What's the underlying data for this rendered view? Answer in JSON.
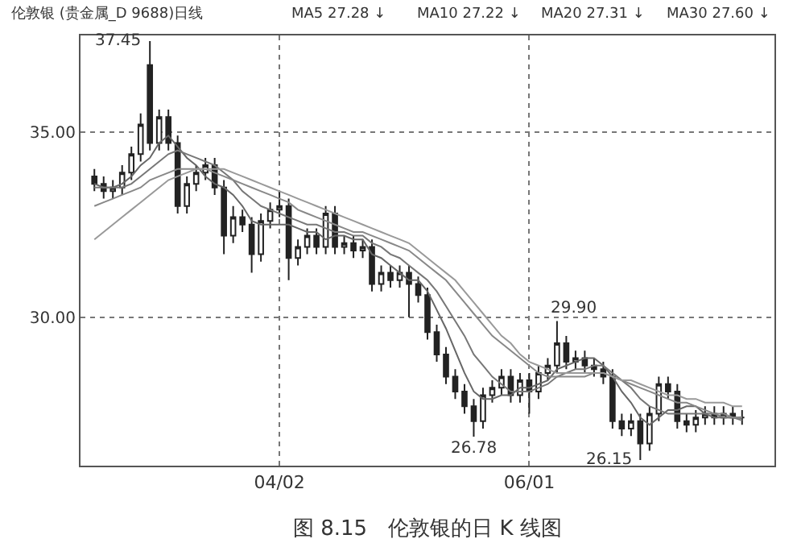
{
  "chart_data": {
    "type": "candlestick",
    "title": "伦敦银 (贵金属_D 9688)日线",
    "categories": [
      null,
      null,
      null,
      null,
      null,
      null,
      null,
      null,
      null,
      null,
      null,
      null,
      null,
      null,
      null,
      null,
      null,
      null,
      null,
      null,
      "04/02",
      null,
      null,
      null,
      null,
      null,
      null,
      null,
      null,
      null,
      null,
      null,
      null,
      null,
      null,
      null,
      null,
      null,
      null,
      null,
      null,
      null,
      null,
      null,
      null,
      null,
      null,
      "06/01",
      null,
      null,
      null,
      null,
      null,
      null,
      null,
      null,
      null,
      null,
      null,
      null,
      null,
      null,
      null,
      null,
      null,
      null,
      null,
      null,
      null,
      null,
      null
    ],
    "ohlc": [
      [
        33.8,
        34.0,
        33.4,
        33.6
      ],
      [
        33.6,
        33.8,
        33.2,
        33.4
      ],
      [
        33.4,
        33.7,
        33.2,
        33.5
      ],
      [
        33.5,
        34.1,
        33.3,
        33.9
      ],
      [
        33.9,
        34.6,
        33.7,
        34.4
      ],
      [
        34.4,
        35.5,
        34.2,
        35.2
      ],
      [
        36.8,
        37.45,
        34.5,
        34.7
      ],
      [
        34.7,
        35.6,
        34.5,
        35.4
      ],
      [
        35.4,
        35.6,
        34.5,
        34.7
      ],
      [
        34.7,
        34.9,
        32.8,
        33.0
      ],
      [
        33.0,
        33.8,
        32.8,
        33.6
      ],
      [
        33.6,
        34.1,
        33.4,
        33.9
      ],
      [
        33.9,
        34.3,
        33.7,
        34.1
      ],
      [
        34.1,
        34.3,
        33.3,
        33.5
      ],
      [
        33.5,
        33.7,
        31.7,
        32.2
      ],
      [
        32.2,
        33.0,
        32.0,
        32.7
      ],
      [
        32.7,
        32.9,
        32.3,
        32.5
      ],
      [
        32.5,
        32.7,
        31.2,
        31.7
      ],
      [
        31.7,
        32.8,
        31.5,
        32.6
      ],
      [
        32.6,
        33.1,
        32.4,
        32.9
      ],
      [
        32.9,
        33.4,
        32.7,
        33.0
      ],
      [
        33.0,
        33.2,
        31.0,
        31.6
      ],
      [
        31.6,
        32.1,
        31.4,
        31.9
      ],
      [
        31.9,
        32.4,
        31.7,
        32.2
      ],
      [
        32.2,
        32.4,
        31.7,
        31.9
      ],
      [
        31.9,
        33.0,
        31.7,
        32.8
      ],
      [
        32.8,
        33.0,
        31.7,
        31.9
      ],
      [
        31.9,
        32.2,
        31.7,
        32.0
      ],
      [
        32.0,
        32.2,
        31.6,
        31.8
      ],
      [
        31.8,
        32.1,
        31.6,
        31.9
      ],
      [
        31.9,
        32.1,
        30.7,
        30.9
      ],
      [
        30.9,
        31.4,
        30.7,
        31.2
      ],
      [
        31.2,
        31.4,
        30.8,
        31.0
      ],
      [
        31.0,
        31.4,
        30.8,
        31.2
      ],
      [
        31.2,
        31.4,
        30.0,
        30.9
      ],
      [
        30.9,
        31.1,
        30.4,
        30.6
      ],
      [
        30.6,
        30.8,
        29.4,
        29.6
      ],
      [
        29.6,
        29.8,
        28.8,
        29.0
      ],
      [
        29.0,
        29.2,
        28.2,
        28.4
      ],
      [
        28.4,
        28.6,
        27.8,
        28.0
      ],
      [
        28.0,
        28.2,
        27.4,
        27.6
      ],
      [
        27.6,
        27.8,
        26.78,
        27.2
      ],
      [
        27.2,
        28.1,
        27.0,
        27.9
      ],
      [
        27.9,
        28.3,
        27.7,
        28.1
      ],
      [
        28.1,
        28.6,
        27.9,
        28.4
      ],
      [
        28.4,
        28.6,
        27.7,
        27.9
      ],
      [
        27.9,
        28.5,
        27.7,
        28.3
      ],
      [
        28.3,
        28.5,
        27.4,
        28.0
      ],
      [
        28.0,
        28.7,
        27.8,
        28.5
      ],
      [
        28.5,
        28.9,
        28.3,
        28.7
      ],
      [
        28.7,
        29.9,
        28.5,
        29.3
      ],
      [
        29.3,
        29.5,
        28.6,
        28.8
      ],
      [
        28.8,
        29.1,
        28.6,
        28.9
      ],
      [
        28.9,
        29.1,
        28.5,
        28.7
      ],
      [
        28.7,
        28.9,
        28.4,
        28.6
      ],
      [
        28.6,
        28.8,
        28.2,
        28.4
      ],
      [
        28.4,
        28.6,
        27.0,
        27.2
      ],
      [
        27.2,
        27.4,
        26.8,
        27.0
      ],
      [
        27.0,
        27.4,
        26.8,
        27.2
      ],
      [
        27.2,
        27.4,
        26.15,
        26.6
      ],
      [
        26.6,
        27.6,
        26.4,
        27.4
      ],
      [
        27.4,
        28.4,
        27.2,
        28.2
      ],
      [
        28.2,
        28.4,
        27.8,
        28.0
      ],
      [
        28.0,
        28.2,
        27.0,
        27.2
      ],
      [
        27.2,
        27.4,
        26.9,
        27.1
      ],
      [
        27.1,
        27.5,
        26.9,
        27.3
      ],
      [
        27.3,
        27.6,
        27.1,
        27.4
      ],
      [
        27.4,
        27.6,
        27.1,
        27.3
      ],
      [
        27.3,
        27.6,
        27.1,
        27.4
      ],
      [
        27.4,
        27.6,
        27.1,
        27.3
      ],
      [
        27.3,
        27.5,
        27.1,
        27.3
      ]
    ],
    "series": [
      {
        "type": "line",
        "color": "#666666",
        "values": [
          33.6,
          33.5,
          33.5,
          33.6,
          33.8,
          34.1,
          34.3,
          34.7,
          34.9,
          34.6,
          34.3,
          34.1,
          33.8,
          33.6,
          33.5,
          33.3,
          33.0,
          32.6,
          32.5,
          32.5,
          32.5,
          32.5,
          32.4,
          32.3,
          32.3,
          32.1,
          32.2,
          32.2,
          32.1,
          32.1,
          31.7,
          31.6,
          31.4,
          31.2,
          31.0,
          31.0,
          30.7,
          30.2,
          29.7,
          29.1,
          28.5,
          28.0,
          27.8,
          27.8,
          27.9,
          27.9,
          28.1,
          28.1,
          28.2,
          28.3,
          28.6,
          28.7,
          28.8,
          28.9,
          28.9,
          28.7,
          28.4,
          28.0,
          27.7,
          27.3,
          27.1,
          27.3,
          27.5,
          27.5,
          27.6,
          27.6,
          27.4,
          27.3,
          27.3,
          27.3,
          27.28
        ]
      },
      {
        "type": "line",
        "color": "#777777",
        "values": [
          33.5,
          33.5,
          33.5,
          33.5,
          33.6,
          33.8,
          34.0,
          34.2,
          34.4,
          34.5,
          34.4,
          34.3,
          34.2,
          34.1,
          33.9,
          33.7,
          33.4,
          33.2,
          33.0,
          32.9,
          32.8,
          32.7,
          32.6,
          32.5,
          32.5,
          32.4,
          32.3,
          32.3,
          32.2,
          32.2,
          32.0,
          31.9,
          31.7,
          31.6,
          31.4,
          31.2,
          31.0,
          30.7,
          30.3,
          29.9,
          29.5,
          29.0,
          28.7,
          28.4,
          28.2,
          28.0,
          28.0,
          28.0,
          28.1,
          28.2,
          28.4,
          28.5,
          28.6,
          28.6,
          28.7,
          28.7,
          28.5,
          28.3,
          28.1,
          27.8,
          27.6,
          27.5,
          27.4,
          27.4,
          27.4,
          27.4,
          27.4,
          27.4,
          27.3,
          27.3,
          27.22
        ]
      },
      {
        "type": "line",
        "color": "#888888",
        "values": [
          33.0,
          33.1,
          33.2,
          33.3,
          33.4,
          33.5,
          33.7,
          33.8,
          33.9,
          34.0,
          34.0,
          34.0,
          34.0,
          33.9,
          33.8,
          33.7,
          33.6,
          33.5,
          33.4,
          33.3,
          33.2,
          33.1,
          32.9,
          32.8,
          32.7,
          32.6,
          32.5,
          32.4,
          32.3,
          32.3,
          32.2,
          32.1,
          32.0,
          31.9,
          31.8,
          31.6,
          31.4,
          31.2,
          31.0,
          30.7,
          30.4,
          30.1,
          29.8,
          29.5,
          29.3,
          29.1,
          28.9,
          28.7,
          28.5,
          28.4,
          28.4,
          28.4,
          28.4,
          28.4,
          28.5,
          28.5,
          28.4,
          28.3,
          28.2,
          28.1,
          28.0,
          27.9,
          27.8,
          27.7,
          27.7,
          27.6,
          27.5,
          27.4,
          27.4,
          27.3,
          27.31
        ]
      },
      {
        "type": "line",
        "color": "#999999",
        "values": [
          32.1,
          32.3,
          32.5,
          32.7,
          32.9,
          33.1,
          33.3,
          33.5,
          33.7,
          33.8,
          33.9,
          34.0,
          34.0,
          34.0,
          34.0,
          33.9,
          33.8,
          33.7,
          33.6,
          33.5,
          33.4,
          33.3,
          33.2,
          33.1,
          33.0,
          32.9,
          32.8,
          32.7,
          32.6,
          32.5,
          32.4,
          32.3,
          32.2,
          32.1,
          32.0,
          31.8,
          31.6,
          31.4,
          31.2,
          31.0,
          30.7,
          30.4,
          30.1,
          29.8,
          29.5,
          29.3,
          29.0,
          28.8,
          28.7,
          28.6,
          28.5,
          28.5,
          28.5,
          28.5,
          28.5,
          28.5,
          28.4,
          28.3,
          28.3,
          28.2,
          28.1,
          28.0,
          27.9,
          27.9,
          27.8,
          27.8,
          27.7,
          27.7,
          27.7,
          27.6,
          27.6
        ]
      }
    ],
    "ylim": [
      26.0,
      37.6
    ],
    "yticks": [
      {
        "value": 30,
        "label": "30.00"
      },
      {
        "value": 35,
        "label": "35.00"
      }
    ],
    "grid": true,
    "line_style": "solid",
    "marker": "none",
    "annotations": [
      "37.45",
      "29.90",
      "26.78",
      "26.15",
      "MA5 27.28 ↓",
      "MA10 27.22 ↓",
      "MA20 27.31 ↓",
      "MA30 27.60 ↓",
      "图 8.15　伦敦银的日 K 线图"
    ]
  }
}
